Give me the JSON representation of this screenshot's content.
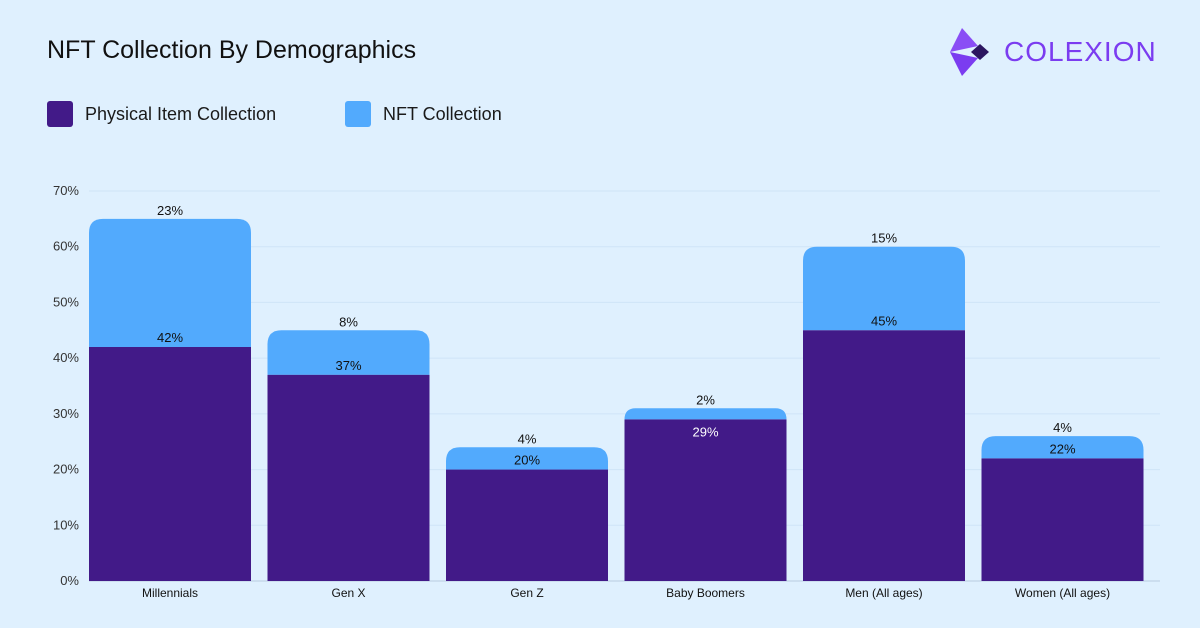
{
  "title": "NFT Collection By Demographics",
  "logo": {
    "text": "COLEXION"
  },
  "colors": {
    "physical": "#421a88",
    "nft": "#52aafd",
    "logo": "#7b3cf0",
    "logo_dark": "#2c1660",
    "grid": "#cfe4f7"
  },
  "chart_data": {
    "type": "bar",
    "stacked": true,
    "title": "NFT Collection By Demographics",
    "categories": [
      "Millennials",
      "Gen X",
      "Gen Z",
      "Baby Boomers",
      "Men (All ages)",
      "Women (All ages)"
    ],
    "series": [
      {
        "name": "Physical Item Collection",
        "values": [
          42,
          37,
          20,
          29,
          45,
          22
        ]
      },
      {
        "name": "NFT Collection",
        "values": [
          23,
          8,
          4,
          2,
          15,
          4
        ]
      }
    ],
    "yticks": [
      "0%",
      "10%",
      "20%",
      "30%",
      "40%",
      "50%",
      "60%",
      "70%"
    ],
    "ylim": [
      0,
      70
    ],
    "grid": true,
    "legend": "top-left"
  }
}
